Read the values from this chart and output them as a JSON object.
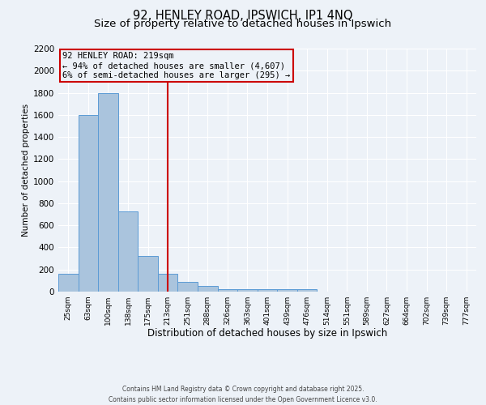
{
  "title_line1": "92, HENLEY ROAD, IPSWICH, IP1 4NQ",
  "title_line2": "Size of property relative to detached houses in Ipswich",
  "xlabel": "Distribution of detached houses by size in Ipswich",
  "ylabel": "Number of detached properties",
  "footer_line1": "Contains HM Land Registry data © Crown copyright and database right 2025.",
  "footer_line2": "Contains public sector information licensed under the Open Government Licence v3.0.",
  "categories": [
    "25sqm",
    "63sqm",
    "100sqm",
    "138sqm",
    "175sqm",
    "213sqm",
    "251sqm",
    "288sqm",
    "326sqm",
    "363sqm",
    "401sqm",
    "439sqm",
    "476sqm",
    "514sqm",
    "551sqm",
    "589sqm",
    "627sqm",
    "664sqm",
    "702sqm",
    "739sqm",
    "777sqm"
  ],
  "values": [
    160,
    1600,
    1800,
    725,
    325,
    160,
    85,
    50,
    25,
    20,
    20,
    20,
    20,
    0,
    0,
    0,
    0,
    0,
    0,
    0,
    0
  ],
  "bar_color": "#aac4dd",
  "bar_edge_color": "#5b9bd5",
  "vline_index": 5,
  "vline_color": "#cc0000",
  "annotation_text": "92 HENLEY ROAD: 219sqm\n← 94% of detached houses are smaller (4,607)\n6% of semi-detached houses are larger (295) →",
  "annotation_box_color": "#cc0000",
  "ylim": [
    0,
    2200
  ],
  "yticks": [
    0,
    200,
    400,
    600,
    800,
    1000,
    1200,
    1400,
    1600,
    1800,
    2000,
    2200
  ],
  "bg_color": "#edf2f8",
  "grid_color": "#ffffff",
  "title_fontsize": 10.5,
  "subtitle_fontsize": 9.5,
  "footer_fontsize": 5.5,
  "xlabel_fontsize": 8.5,
  "ylabel_fontsize": 7.5,
  "tick_fontsize": 6.5,
  "annot_fontsize": 7.5
}
